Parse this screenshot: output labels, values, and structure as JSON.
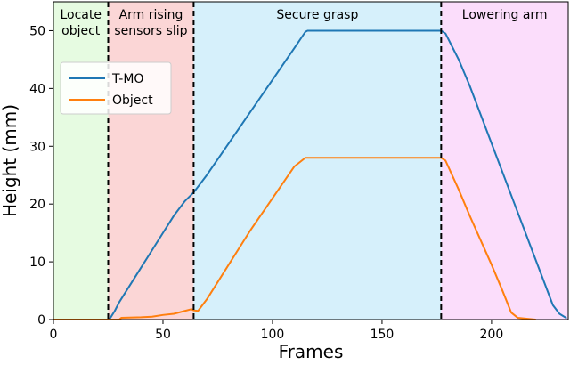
{
  "chart_data": {
    "type": "line",
    "title": "",
    "xlabel": "Frames",
    "ylabel": "Height (mm)",
    "xlim": [
      0,
      235
    ],
    "ylim": [
      0,
      55
    ],
    "xticks": [
      0,
      50,
      100,
      150,
      200
    ],
    "yticks": [
      0,
      10,
      20,
      30,
      40,
      50
    ],
    "grid": false,
    "legend": {
      "placement": "upper-left"
    },
    "regions": [
      {
        "label_lines": [
          "Locate",
          "object"
        ],
        "x_start": 0,
        "x_end": 25,
        "color": "#e6fbe1"
      },
      {
        "label_lines": [
          "Arm rising",
          "sensors slip"
        ],
        "x_start": 25,
        "x_end": 64,
        "color": "#fbd6d6"
      },
      {
        "label_lines": [
          "Secure grasp"
        ],
        "x_start": 64,
        "x_end": 177,
        "color": "#d6f0fb"
      },
      {
        "label_lines": [
          "Lowering arm"
        ],
        "x_start": 177,
        "x_end": 235,
        "color": "#fbddfb"
      }
    ],
    "dividers": [
      25,
      64,
      177
    ],
    "series": [
      {
        "name": "T-MO",
        "color": "#1f77b4",
        "points": [
          [
            0,
            0
          ],
          [
            25,
            0
          ],
          [
            26,
            0.3
          ],
          [
            28,
            1.5
          ],
          [
            30,
            3.0
          ],
          [
            35,
            6.0
          ],
          [
            40,
            9.0
          ],
          [
            45,
            12.0
          ],
          [
            50,
            15.0
          ],
          [
            55,
            18.0
          ],
          [
            60,
            20.5
          ],
          [
            64,
            22.0
          ],
          [
            70,
            25.0
          ],
          [
            80,
            30.5
          ],
          [
            90,
            36.0
          ],
          [
            100,
            41.5
          ],
          [
            110,
            47.0
          ],
          [
            115,
            49.8
          ],
          [
            116,
            50.0
          ],
          [
            177,
            50.0
          ],
          [
            179,
            49.5
          ],
          [
            185,
            45.0
          ],
          [
            190,
            40.5
          ],
          [
            200,
            30.5
          ],
          [
            210,
            20.5
          ],
          [
            220,
            10.5
          ],
          [
            228,
            2.5
          ],
          [
            231,
            1.0
          ],
          [
            234,
            0.3
          ]
        ]
      },
      {
        "name": "Object",
        "color": "#ff7f0e",
        "points": [
          [
            0,
            0
          ],
          [
            30,
            0
          ],
          [
            31,
            0.3
          ],
          [
            40,
            0.4
          ],
          [
            45,
            0.5
          ],
          [
            50,
            0.8
          ],
          [
            55,
            1.0
          ],
          [
            60,
            1.5
          ],
          [
            63,
            1.8
          ],
          [
            64,
            1.6
          ],
          [
            66,
            1.5
          ],
          [
            70,
            3.5
          ],
          [
            75,
            6.5
          ],
          [
            80,
            9.5
          ],
          [
            90,
            15.5
          ],
          [
            100,
            21.0
          ],
          [
            110,
            26.5
          ],
          [
            115,
            28.0
          ],
          [
            177,
            28.0
          ],
          [
            179,
            27.5
          ],
          [
            185,
            22.5
          ],
          [
            190,
            18.0
          ],
          [
            200,
            9.5
          ],
          [
            205,
            5.0
          ],
          [
            209,
            1.2
          ],
          [
            212,
            0.3
          ],
          [
            220,
            0
          ]
        ]
      }
    ]
  }
}
